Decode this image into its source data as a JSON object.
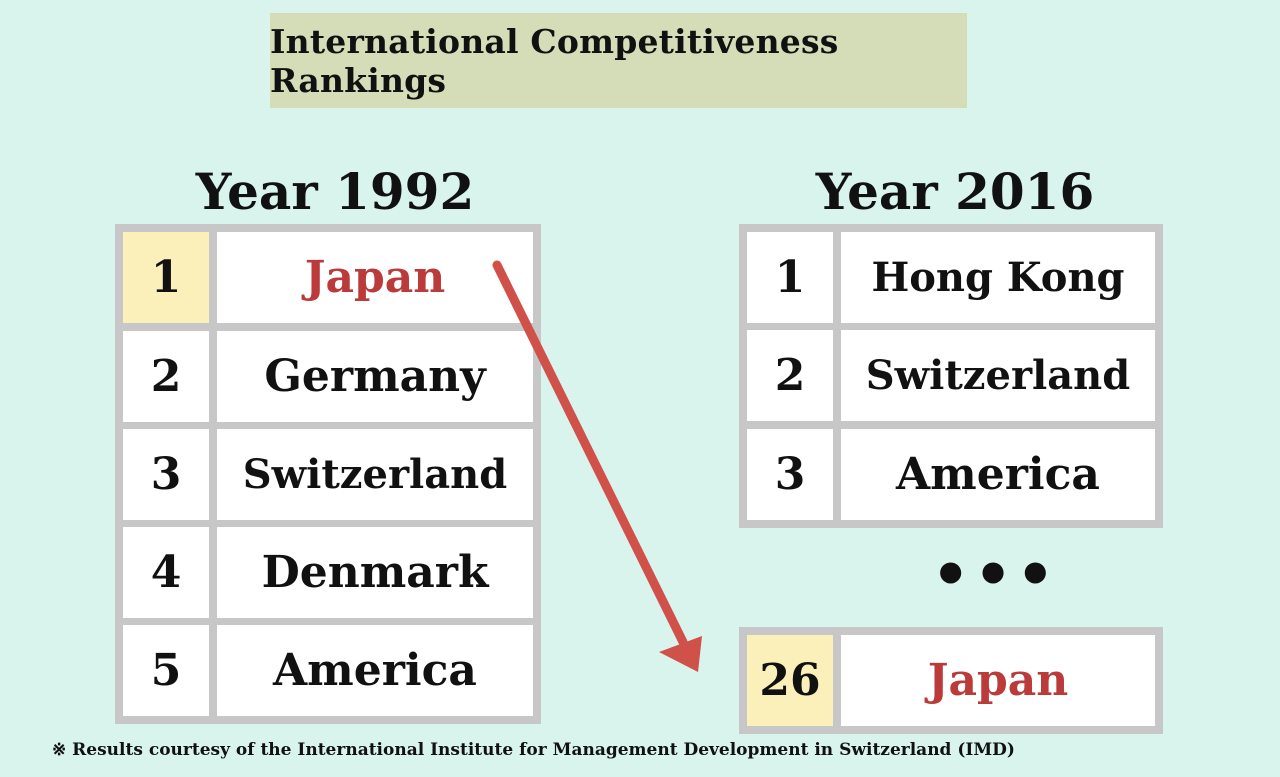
{
  "title": "International Competitiveness Rankings",
  "left_panel": {
    "year_label": "Year 1992",
    "rows": [
      {
        "rank": "1",
        "country": "Japan"
      },
      {
        "rank": "2",
        "country": "Germany"
      },
      {
        "rank": "3",
        "country": "Switzerland"
      },
      {
        "rank": "4",
        "country": "Denmark"
      },
      {
        "rank": "5",
        "country": "America"
      }
    ]
  },
  "right_panel": {
    "year_label": "Year 2016",
    "rows": [
      {
        "rank": "1",
        "country": "Hong Kong"
      },
      {
        "rank": "2",
        "country": "Switzerland"
      },
      {
        "rank": "3",
        "country": "America"
      }
    ],
    "ellipsis": "•••",
    "japan_row": {
      "rank": "26",
      "country": "Japan"
    }
  },
  "footnote": "※ Results courtesy of the International Institute for Management Development in Switzerland (IMD)",
  "colors": {
    "background": "#d9f4ec",
    "title_box": "#d4ddb7",
    "highlight_cell": "#fbf0b9",
    "japan_text": "#bb3a3a",
    "arrow": "#d0504a",
    "table_border": "#c7c7c7"
  }
}
